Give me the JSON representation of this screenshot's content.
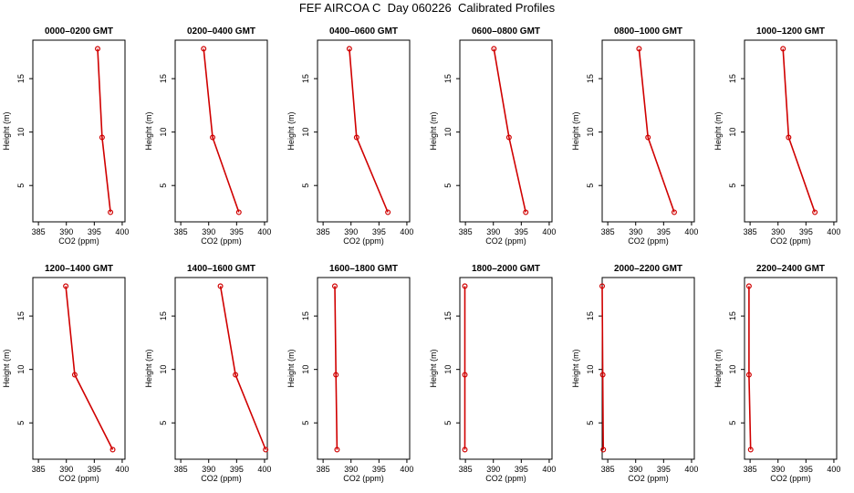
{
  "page_title": "FEF AIRCOA C  Day 060226  Calibrated Profiles",
  "colors": {
    "line": "#d00000",
    "marker": "#d00000",
    "axis": "#000000"
  },
  "chart_data": [
    {
      "type": "line",
      "title": "0000–0200 GMT",
      "xlabel": "CO2 (ppm)",
      "ylabel": "Height (m)",
      "xlim": [
        384,
        400.5
      ],
      "ylim": [
        1.6,
        18.6
      ],
      "xticks": [
        385,
        390,
        395,
        400
      ],
      "yticks": [
        5,
        10,
        15
      ],
      "x": [
        395.6,
        396.4,
        397.9
      ],
      "y": [
        17.8,
        9.5,
        2.5
      ]
    },
    {
      "type": "line",
      "title": "0200–0400 GMT",
      "xlabel": "CO2 (ppm)",
      "ylabel": "Height (m)",
      "xlim": [
        384,
        400.5
      ],
      "ylim": [
        1.6,
        18.6
      ],
      "xticks": [
        385,
        390,
        395,
        400
      ],
      "yticks": [
        5,
        10,
        15
      ],
      "x": [
        389.1,
        390.7,
        395.4
      ],
      "y": [
        17.8,
        9.5,
        2.5
      ]
    },
    {
      "type": "line",
      "title": "0400–0600 GMT",
      "xlabel": "CO2 (ppm)",
      "ylabel": "Height (m)",
      "xlim": [
        384,
        400.5
      ],
      "ylim": [
        1.6,
        18.6
      ],
      "xticks": [
        385,
        390,
        395,
        400
      ],
      "yticks": [
        5,
        10,
        15
      ],
      "x": [
        389.7,
        391.0,
        396.6
      ],
      "y": [
        17.8,
        9.5,
        2.5
      ]
    },
    {
      "type": "line",
      "title": "0600–0800 GMT",
      "xlabel": "CO2 (ppm)",
      "ylabel": "Height (m)",
      "xlim": [
        384,
        400.5
      ],
      "ylim": [
        1.6,
        18.6
      ],
      "xticks": [
        385,
        390,
        395,
        400
      ],
      "yticks": [
        5,
        10,
        15
      ],
      "x": [
        390.1,
        392.8,
        395.8
      ],
      "y": [
        17.8,
        9.5,
        2.5
      ]
    },
    {
      "type": "line",
      "title": "0800–1000 GMT",
      "xlabel": "CO2 (ppm)",
      "ylabel": "Height (m)",
      "xlim": [
        384,
        400.5
      ],
      "ylim": [
        1.6,
        18.6
      ],
      "xticks": [
        385,
        390,
        395,
        400
      ],
      "yticks": [
        5,
        10,
        15
      ],
      "x": [
        390.6,
        392.2,
        396.9
      ],
      "y": [
        17.8,
        9.5,
        2.5
      ]
    },
    {
      "type": "line",
      "title": "1000–1200 GMT",
      "xlabel": "CO2 (ppm)",
      "ylabel": "Height (m)",
      "xlim": [
        384,
        400.5
      ],
      "ylim": [
        1.6,
        18.6
      ],
      "xticks": [
        385,
        390,
        395,
        400
      ],
      "yticks": [
        5,
        10,
        15
      ],
      "x": [
        390.9,
        391.9,
        396.6
      ],
      "y": [
        17.8,
        9.5,
        2.5
      ]
    },
    {
      "type": "line",
      "title": "1200–1400 GMT",
      "xlabel": "CO2 (ppm)",
      "ylabel": "Height (m)",
      "xlim": [
        384,
        400.5
      ],
      "ylim": [
        1.6,
        18.6
      ],
      "xticks": [
        385,
        390,
        395,
        400
      ],
      "yticks": [
        5,
        10,
        15
      ],
      "x": [
        389.9,
        391.5,
        398.3
      ],
      "y": [
        17.8,
        9.5,
        2.5
      ]
    },
    {
      "type": "line",
      "title": "1400–1600 GMT",
      "xlabel": "CO2 (ppm)",
      "ylabel": "Height (m)",
      "xlim": [
        384,
        400.5
      ],
      "ylim": [
        1.6,
        18.6
      ],
      "xticks": [
        385,
        390,
        395,
        400
      ],
      "yticks": [
        5,
        10,
        15
      ],
      "x": [
        392.1,
        394.8,
        400.2
      ],
      "y": [
        17.8,
        9.5,
        2.5
      ]
    },
    {
      "type": "line",
      "title": "1600–1800 GMT",
      "xlabel": "CO2 (ppm)",
      "ylabel": "Height (m)",
      "xlim": [
        384,
        400.5
      ],
      "ylim": [
        1.6,
        18.6
      ],
      "xticks": [
        385,
        390,
        395,
        400
      ],
      "yticks": [
        5,
        10,
        15
      ],
      "x": [
        387.1,
        387.3,
        387.5
      ],
      "y": [
        17.8,
        9.5,
        2.5
      ]
    },
    {
      "type": "line",
      "title": "1800–2000 GMT",
      "xlabel": "CO2 (ppm)",
      "ylabel": "Height (m)",
      "xlim": [
        384,
        400.5
      ],
      "ylim": [
        1.6,
        18.6
      ],
      "xticks": [
        385,
        390,
        395,
        400
      ],
      "yticks": [
        5,
        10,
        15
      ],
      "x": [
        384.9,
        384.9,
        384.9
      ],
      "y": [
        17.8,
        9.5,
        2.5
      ]
    },
    {
      "type": "line",
      "title": "2000–2200 GMT",
      "xlabel": "CO2 (ppm)",
      "ylabel": "Height (m)",
      "xlim": [
        384,
        400.5
      ],
      "ylim": [
        1.6,
        18.6
      ],
      "xticks": [
        385,
        390,
        395,
        400
      ],
      "yticks": [
        5,
        10,
        15
      ],
      "x": [
        384.0,
        384.1,
        384.2
      ],
      "y": [
        17.8,
        9.5,
        2.5
      ]
    },
    {
      "type": "line",
      "title": "2200–2400 GMT",
      "xlabel": "CO2 (ppm)",
      "ylabel": "Height (m)",
      "xlim": [
        384,
        400.5
      ],
      "ylim": [
        1.6,
        18.6
      ],
      "xticks": [
        385,
        390,
        395,
        400
      ],
      "yticks": [
        5,
        10,
        15
      ],
      "x": [
        384.8,
        384.8,
        385.1
      ],
      "y": [
        17.8,
        9.5,
        2.5
      ]
    }
  ]
}
